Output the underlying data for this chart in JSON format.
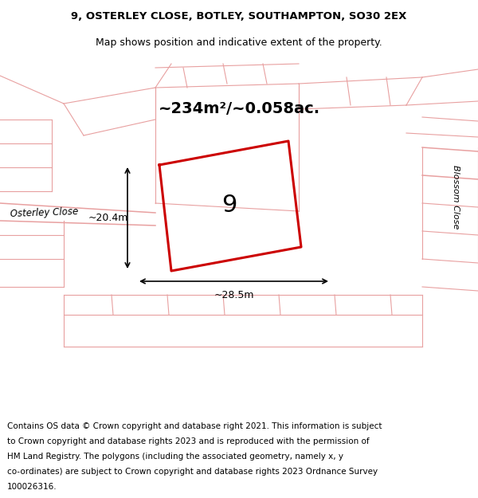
{
  "title_line1": "9, OSTERLEY CLOSE, BOTLEY, SOUTHAMPTON, SO30 2EX",
  "title_line2": "Map shows position and indicative extent of the property.",
  "footer_lines": [
    "Contains OS data © Crown copyright and database right 2021. This information is subject",
    "to Crown copyright and database rights 2023 and is reproduced with the permission of",
    "HM Land Registry. The polygons (including the associated geometry, namely x, y",
    "co-ordinates) are subject to Crown copyright and database rights 2023 Ordnance Survey",
    "100026316."
  ],
  "area_label": "~234m²/~0.058ac.",
  "plot_number": "9",
  "dim_width": "~28.5m",
  "dim_height": "~20.4m",
  "map_bg": "#f0ede8",
  "plot_outline_color": "#cc0000",
  "road_line_color": "#e8a0a0",
  "street_label_left": "Osterley Close",
  "street_label_right": "Blossom Close",
  "title_fontsize": 9.5,
  "footer_fontsize": 7.5
}
